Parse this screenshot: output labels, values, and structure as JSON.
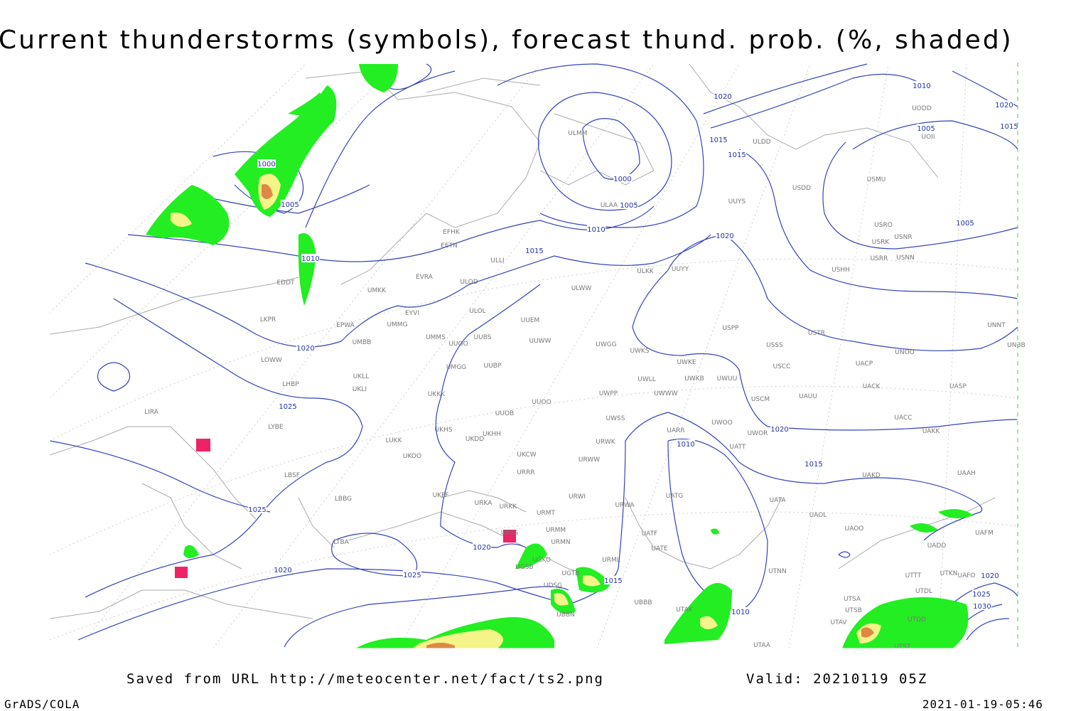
{
  "title": "Current thunderstorms (symbols), forecast thund. prob. (%, shaded)",
  "footer": {
    "source": "Saved from URL http://meteocenter.net/fact/ts2.png",
    "valid": "Valid: 20210119 05Z",
    "software": "GrADS/COLA",
    "timestamp": "2021-01-19-05:46"
  },
  "isobar_labels": [
    "1000",
    "1005",
    "1010",
    "1020",
    "1025",
    "1025",
    "1020",
    "1025",
    "1020",
    "1015",
    "1010",
    "1010",
    "1015",
    "1020",
    "1015",
    "1010",
    "1005",
    "1000",
    "1015",
    "1015",
    "1020",
    "1020",
    "1010",
    "1005",
    "1020",
    "1015",
    "1005",
    "1020",
    "1025",
    "1030"
  ],
  "stations": [
    "ULMM",
    "ULDD",
    "UODD",
    "UOII",
    "USMU",
    "USDD",
    "UUYS",
    "ULAA",
    "USRO",
    "USRK",
    "USNR",
    "USRR",
    "USNN",
    "USHH",
    "EFHK",
    "EETN",
    "ULLI",
    "ULKK",
    "UUYY",
    "EVRA",
    "ULOD",
    "ULWW",
    "EDDT",
    "UMKK",
    "EYVI",
    "ULOL",
    "UUEM",
    "LKPR",
    "EPWA",
    "UMMG",
    "USPP",
    "USTR",
    "UNNT",
    "UMMS",
    "UUOO",
    "UUBS",
    "UUWW",
    "UWGG",
    "UWKS",
    "USSS",
    "UNOO",
    "UNBB",
    "UMBB",
    "LOWW",
    "UWKE",
    "USCC",
    "UACP",
    "UMGG",
    "UUBP",
    "UKLL",
    "UWLL",
    "UWKB",
    "UWUU",
    "UACK",
    "UASP",
    "LHBP",
    "UKLI",
    "UKKK",
    "UWPP",
    "UWWW",
    "USCM",
    "UAUU",
    "UUOO",
    "LIRA",
    "UUOB",
    "UWSS",
    "UACC",
    "LYBE",
    "UKHH",
    "UWOO",
    "UWOR",
    "UAKK",
    "UKHS",
    "UKDD",
    "UARR",
    "URWK",
    "LUKK",
    "UATT",
    "UKOO",
    "UKCW",
    "URWW",
    "LBSF",
    "URRR",
    "UAKD",
    "UAAH",
    "UKFF",
    "URWI",
    "UATG",
    "UATA",
    "LBBG",
    "URKA",
    "URKK",
    "URMT",
    "URWA",
    "UAOL",
    "URMM",
    "URSS",
    "UATF",
    "UAOO",
    "UAFM",
    "URMN",
    "UADD",
    "LTBA",
    "UATE",
    "UGSB",
    "UGKO",
    "URML",
    "UTTT",
    "UTKN",
    "UAFO",
    "UGTB",
    "UDSG",
    "UBBB",
    "UTDL",
    "UTSA",
    "UTAK",
    "UTSB",
    "UBBN",
    "UTAV",
    "UTDD",
    "UTAA",
    "UTST",
    "UTNN"
  ]
}
